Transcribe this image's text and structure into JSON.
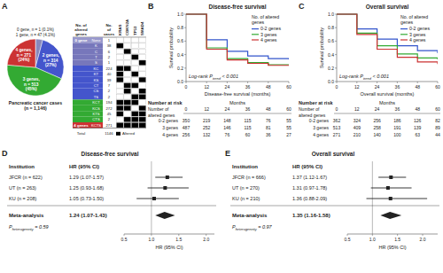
{
  "chart_data": [
    {
      "type": "pie",
      "panel_label": "A",
      "title": "Pancreatic cancer cases\n(n = 1,146)",
      "values": [
        1,
        47,
        314,
        513,
        271
      ],
      "value_labels": [
        "0 gene, n = 1 (0.1%)",
        "1 gene, n = 47 (4.1%)",
        "2 genes,\nn = 314\n(27%)",
        "3 genes,\nn = 513\n(45%)",
        "4 genes,\nn = 271\n(24%)"
      ],
      "colors": [
        "#aaaadd",
        "#8888bb",
        "#4455cc",
        "#33aa33",
        "#cc3333"
      ],
      "data_labels": true
    },
    {
      "type": "table",
      "headers": [
        "No. of\naltered\ngenes",
        "No.\nof\ncases"
      ],
      "genes": [
        "KRAS",
        "CDKN2A",
        "TP53",
        "SMAD4"
      ],
      "group_colors": {
        "0 gene": "#9999cc",
        "1 gene": "#7777bb",
        "2 genes": "#4455cc",
        "3 genes": "#33aa33",
        "4 genes": "#cc3333"
      },
      "color": "black",
      "rows": [
        {
          "group": "0 gene",
          "label": "None",
          "n": 1,
          "cells": [
            0,
            0,
            0,
            0
          ]
        },
        {
          "group": "1 gene",
          "label": "K",
          "n": 38,
          "cells": [
            1,
            0,
            0,
            0
          ]
        },
        {
          "group": "1 gene",
          "label": "C",
          "n": 6,
          "cells": [
            0,
            1,
            0,
            0
          ]
        },
        {
          "group": "1 gene",
          "label": "T",
          "n": 2,
          "cells": [
            0,
            0,
            1,
            0
          ]
        },
        {
          "group": "1 gene",
          "label": "S",
          "n": 1,
          "cells": [
            0,
            0,
            0,
            1
          ]
        },
        {
          "group": "2 genes",
          "label": "KC",
          "n": 224,
          "cells": [
            1,
            1,
            0,
            0
          ]
        },
        {
          "group": "2 genes",
          "label": "KT",
          "n": 40,
          "cells": [
            1,
            0,
            1,
            0
          ]
        },
        {
          "group": "2 genes",
          "label": "KS",
          "n": 39,
          "cells": [
            1,
            0,
            0,
            1
          ]
        },
        {
          "group": "2 genes",
          "label": "CT",
          "n": 7,
          "cells": [
            0,
            1,
            1,
            0
          ]
        },
        {
          "group": "2 genes",
          "label": "CS",
          "n": 2,
          "cells": [
            0,
            1,
            0,
            1
          ]
        },
        {
          "group": "2 genes",
          "label": "TS",
          "n": 2,
          "cells": [
            0,
            0,
            1,
            1
          ]
        },
        {
          "group": "3 genes",
          "label": "KCT",
          "n": 194,
          "cells": [
            1,
            1,
            1,
            0
          ]
        },
        {
          "group": "3 genes",
          "label": "KCS",
          "n": 272,
          "cells": [
            1,
            1,
            0,
            1
          ]
        },
        {
          "group": "3 genes",
          "label": "KTS",
          "n": 45,
          "cells": [
            1,
            0,
            1,
            1
          ]
        },
        {
          "group": "3 genes",
          "label": "CTS",
          "n": 2,
          "cells": [
            0,
            1,
            1,
            1
          ]
        },
        {
          "group": "4 genes",
          "label": "KCTS",
          "n": 271,
          "cells": [
            1,
            1,
            1,
            1
          ]
        }
      ],
      "total_label": "Total",
      "total": 1146,
      "legend_label": "Altered"
    },
    {
      "type": "line",
      "line_style": "step",
      "panel_label": "B",
      "title": "Disease-free survival",
      "xlabel": "Disease-free survival (months)",
      "ylabel": "Survival probability",
      "x": [
        0,
        12,
        24,
        36,
        48,
        60
      ],
      "series": [
        {
          "name": "0-2 genes",
          "color": "#3355cc",
          "values": [
            1.0,
            0.62,
            0.45,
            0.38,
            0.34,
            0.33
          ]
        },
        {
          "name": "3 genes",
          "color": "#33aa33",
          "values": [
            1.0,
            0.5,
            0.34,
            0.28,
            0.25,
            0.25
          ]
        },
        {
          "name": "4 genes",
          "color": "#cc3333",
          "values": [
            1.0,
            0.48,
            0.32,
            0.27,
            0.24,
            0.24
          ]
        }
      ],
      "xlim": [
        0,
        60
      ],
      "xticks": [
        0,
        12,
        24,
        36,
        48,
        60
      ],
      "ylim": [
        0,
        1
      ],
      "yticks": [
        {
          "value": 0,
          "label": "0.0"
        },
        0.2,
        0.4,
        0.6,
        0.8,
        {
          "value": 1,
          "label": "1.0"
        }
      ],
      "legend": "upper right",
      "legend_title": "No. of altered\ngenes",
      "annotation": [
        "Log-rank P",
        "trend",
        " < 0.001"
      ],
      "risk_table": {
        "title": "Number at risk",
        "row_header": "Number of\naltered genes",
        "x_label": "Months",
        "x": [
          0,
          12,
          24,
          36,
          48,
          60
        ],
        "rows": [
          {
            "name": "0-2 genes",
            "values": [
              350,
              219,
              148,
              115,
              76,
              55
            ]
          },
          {
            "name": "3 genes",
            "values": [
              487,
              252,
              146,
              115,
              81,
              55
            ]
          },
          {
            "name": "4 genes",
            "values": [
              256,
              132,
              76,
              60,
              36,
              27
            ]
          }
        ]
      }
    },
    {
      "type": "line",
      "line_style": "step",
      "panel_label": "C",
      "title": "Overall survival",
      "xlabel": "Overall survival (months)",
      "ylabel": "Survival probability",
      "x": [
        0,
        12,
        24,
        36,
        48,
        60
      ],
      "series": [
        {
          "name": "0-2 genes",
          "color": "#3355cc",
          "values": [
            1.0,
            0.78,
            0.63,
            0.53,
            0.46,
            0.42
          ]
        },
        {
          "name": "3 genes",
          "color": "#33aa33",
          "values": [
            1.0,
            0.72,
            0.53,
            0.41,
            0.35,
            0.33
          ]
        },
        {
          "name": "4 genes",
          "color": "#cc3333",
          "values": [
            1.0,
            0.7,
            0.48,
            0.36,
            0.29,
            0.26
          ]
        }
      ],
      "xlim": [
        0,
        60
      ],
      "xticks": [
        0,
        12,
        24,
        36,
        48,
        60
      ],
      "ylim": [
        0,
        1
      ],
      "yticks": [
        {
          "value": 0,
          "label": "0.0"
        },
        0.2,
        0.4,
        0.6,
        0.8,
        {
          "value": 1,
          "label": "1.0"
        }
      ],
      "legend": "upper right",
      "legend_title": "No. of altered\ngenes",
      "annotation": [
        "Log-rank P",
        "trend",
        " < 0.001"
      ],
      "risk_table": {
        "title": "Number at risk",
        "row_header": "Number of\naltered genes",
        "x_label": "Months",
        "x": [
          0,
          12,
          24,
          36,
          48,
          60
        ],
        "rows": [
          {
            "name": "0-2 genes",
            "values": [
              362,
              324,
              256,
              186,
              126,
              82
            ]
          },
          {
            "name": "3 genes",
            "values": [
              513,
              409,
              258,
              191,
              139,
              89
            ]
          },
          {
            "name": "4 genes",
            "values": [
              271,
              210,
              140,
              100,
              63,
              44
            ]
          }
        ]
      }
    },
    {
      "type": "forest",
      "panel_label": "D",
      "title": "Disease-free survival",
      "column_headers": [
        "Institution",
        "HR (95% CI)"
      ],
      "xlabel": "HR (95% CI)",
      "categories": [
        "JFCR (n = 622)",
        "UT (n = 263)",
        "KU (n = 208)"
      ],
      "values": [
        1.29,
        1.25,
        1.05
      ],
      "ci_low": [
        1.07,
        0.93,
        0.73
      ],
      "ci_high": [
        1.57,
        1.68,
        1.5
      ],
      "value_labels": [
        "1.29 (1.07-1.57)",
        "1.25 (0.93-1.68)",
        "1.05 (0.73-1.50)"
      ],
      "data_labels": true,
      "meta": {
        "label": "Meta-analysis",
        "value": 1.24,
        "low": 1.07,
        "high": 1.43,
        "value_label": "1.24 (1.07-1.43)"
      },
      "p_het": [
        "P",
        "heterogeneity",
        " = 0.59"
      ],
      "ref_line": 1,
      "xlim": [
        0.5,
        2.15
      ],
      "xticks": [
        0.5,
        {
          "value": 1,
          "label": "1.0"
        },
        1.5,
        {
          "value": 2,
          "label": "2.0"
        }
      ]
    },
    {
      "type": "forest",
      "panel_label": "E",
      "title": "Overall survival",
      "column_headers": [
        "Institution",
        "HR (95% CI)"
      ],
      "xlabel": "HR (95% CI)",
      "categories": [
        "JFCR (n = 666)",
        "UT (n = 270)",
        "KU (n = 210)"
      ],
      "values": [
        1.37,
        1.31,
        1.36
      ],
      "ci_low": [
        1.12,
        0.97,
        0.88
      ],
      "ci_high": [
        1.67,
        1.78,
        2.09
      ],
      "value_labels": [
        "1.37 (1.12-1.67)",
        "1.31 (0.97-1.78)",
        "1.36 (0.88-2.09)"
      ],
      "data_labels": true,
      "meta": {
        "label": "Meta-analysis",
        "value": 1.35,
        "low": 1.16,
        "high": 1.58,
        "value_label": "1.35 (1.16-1.58)"
      },
      "p_het": [
        "P",
        "heterogeneity",
        " = 0.97"
      ],
      "ref_line": 1,
      "xlim": [
        0.5,
        2.3
      ],
      "xticks": [
        0.5,
        {
          "value": 1,
          "label": "1.0"
        },
        1.5,
        {
          "value": 2,
          "label": "2.0"
        }
      ]
    }
  ]
}
